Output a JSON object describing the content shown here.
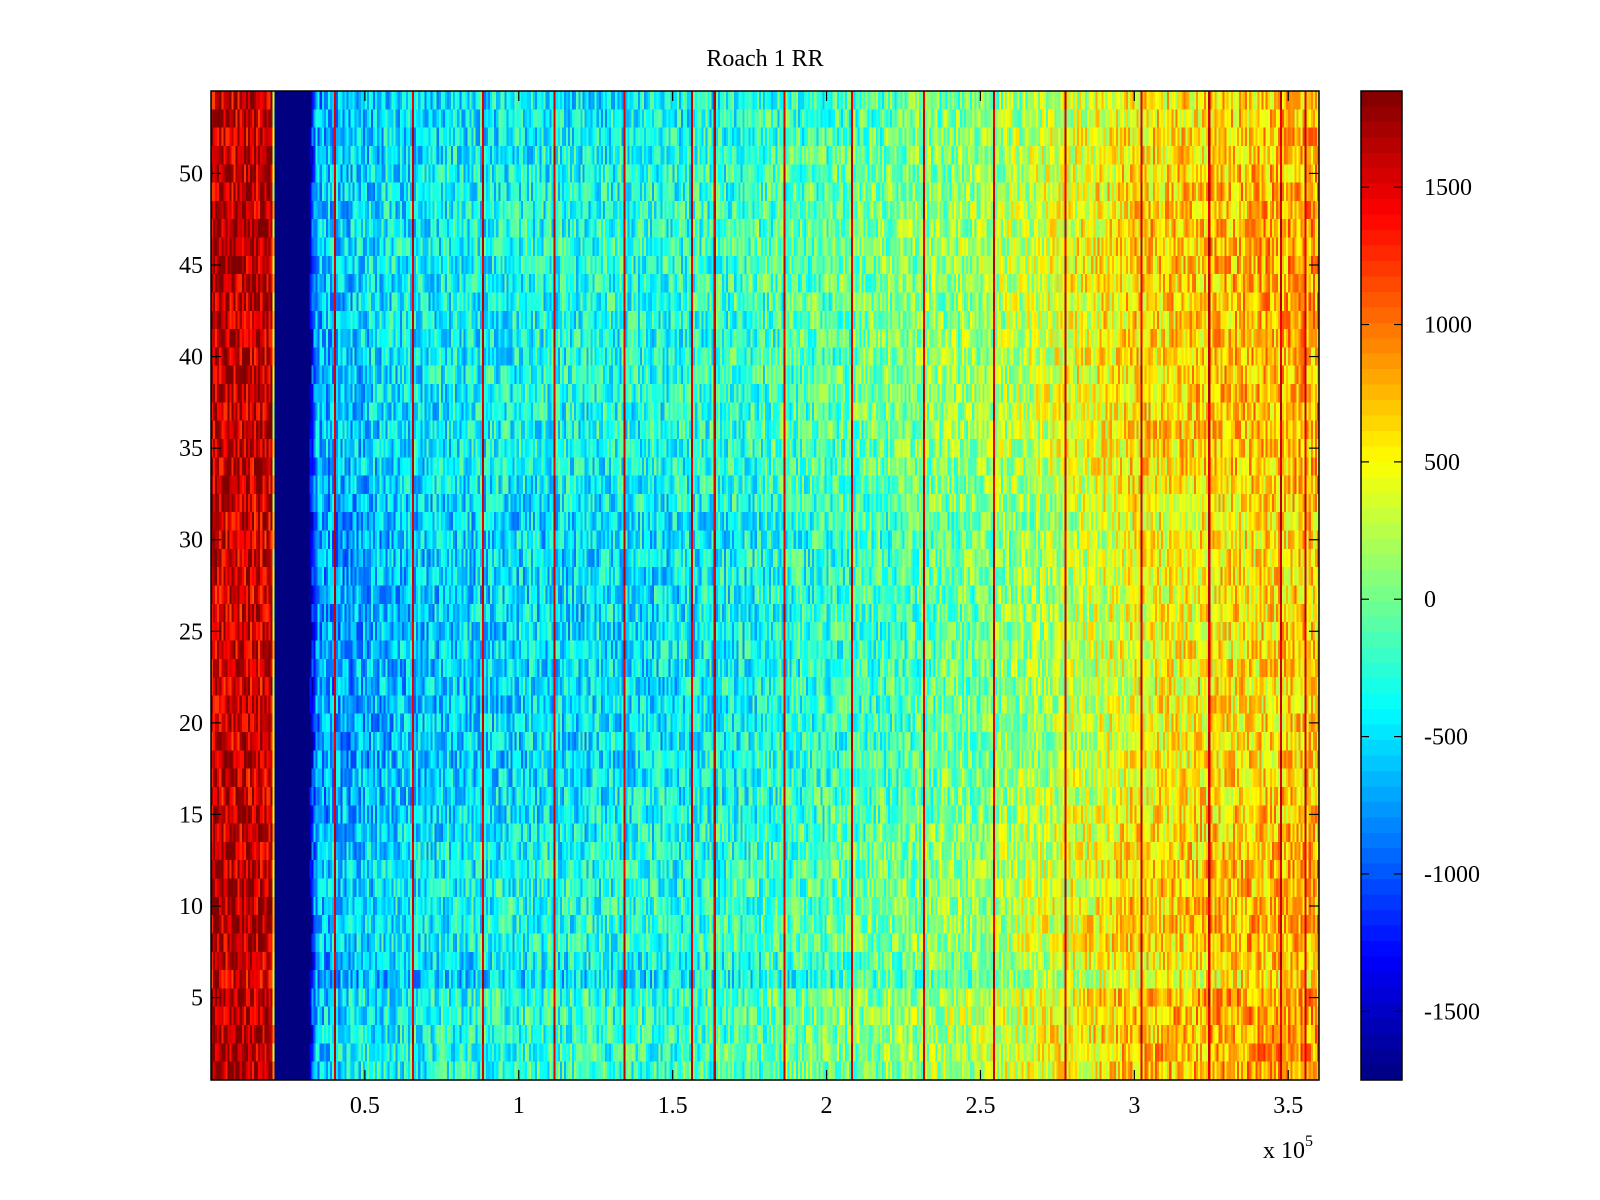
{
  "chart_data": {
    "type": "heatmap",
    "title": "Roach 1 RR",
    "xlabel": "",
    "ylabel": "",
    "x_range": [
      0,
      360000
    ],
    "y_range": [
      0.5,
      54.5
    ],
    "x_ticks": [
      50000,
      100000,
      150000,
      200000,
      250000,
      300000,
      350000
    ],
    "x_tick_labels": [
      "0.5",
      "1",
      "1.5",
      "2",
      "2.5",
      "3",
      "3.5"
    ],
    "x_exponent_label": "x 10",
    "x_exponent_power": "5",
    "y_ticks": [
      5,
      10,
      15,
      20,
      25,
      30,
      35,
      40,
      45,
      50
    ],
    "y_tick_labels": [
      "5",
      "10",
      "15",
      "20",
      "25",
      "30",
      "35",
      "40",
      "45",
      "50"
    ],
    "colorbar": {
      "range": [
        -1750,
        1850
      ],
      "ticks": [
        -1500,
        -1000,
        -500,
        0,
        500,
        1000,
        1500
      ],
      "tick_labels": [
        "-1500",
        "-1000",
        "-500",
        "0",
        "500",
        "1000",
        "1500"
      ],
      "colormap": "jet"
    },
    "n_rows": 54,
    "column_profile": [
      {
        "x": 0,
        "value": 1550
      },
      {
        "x": 20000,
        "value": 1550
      },
      {
        "x": 21000,
        "value": -1750
      },
      {
        "x": 32000,
        "value": -1750
      },
      {
        "x": 34000,
        "value": -800
      },
      {
        "x": 60000,
        "value": -600
      },
      {
        "x": 100000,
        "value": -500
      },
      {
        "x": 150000,
        "value": -450
      },
      {
        "x": 200000,
        "value": -250
      },
      {
        "x": 250000,
        "value": 0
      },
      {
        "x": 280000,
        "value": 250
      },
      {
        "x": 300000,
        "value": 450
      },
      {
        "x": 330000,
        "value": 550
      },
      {
        "x": 360000,
        "value": 650
      }
    ],
    "row_profile": [
      {
        "row": 1,
        "delta": 250
      },
      {
        "row": 5,
        "delta": 250
      },
      {
        "row": 6,
        "delta": 0
      },
      {
        "row": 8,
        "delta": 200
      },
      {
        "row": 12,
        "delta": 150
      },
      {
        "row": 14,
        "delta": 100
      },
      {
        "row": 18,
        "delta": 0
      },
      {
        "row": 31,
        "delta": 0
      },
      {
        "row": 33,
        "delta": 100
      },
      {
        "row": 36,
        "delta": 150
      },
      {
        "row": 41,
        "delta": 150
      },
      {
        "row": 46,
        "delta": 200
      },
      {
        "row": 50,
        "delta": 150
      },
      {
        "row": 54,
        "delta": 50
      }
    ],
    "spike_columns_x": [
      40000,
      65000,
      88000,
      111000,
      134000,
      156000,
      163000,
      186000,
      208000,
      231000,
      254000,
      277000,
      302000,
      324000,
      347000,
      355000
    ],
    "spike_value": 1700,
    "noise_amplitude": 420
  }
}
